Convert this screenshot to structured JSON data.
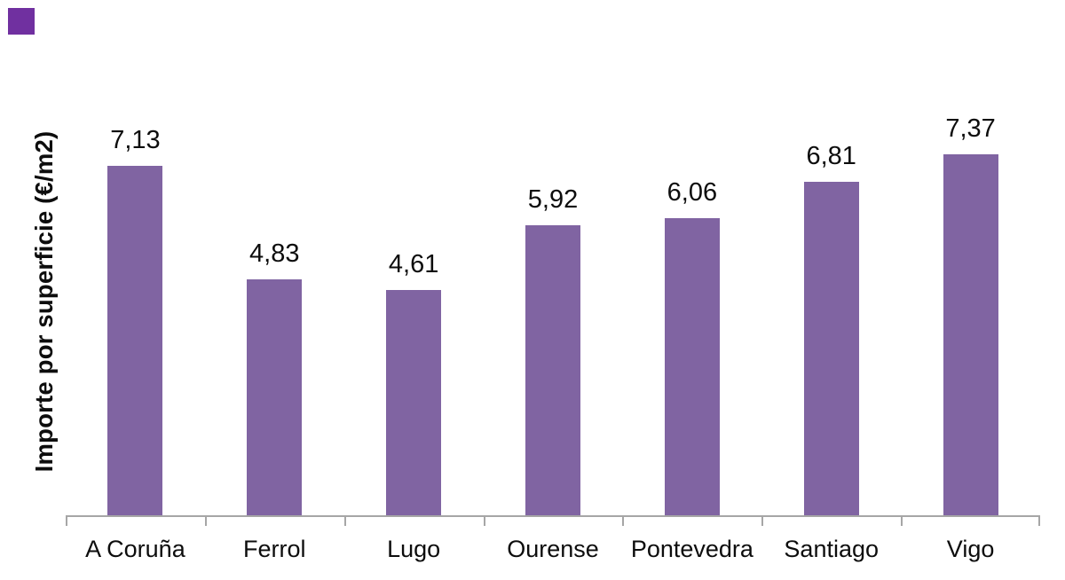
{
  "colors": {
    "bar": "#8064A2",
    "corner_square": "#7030A0",
    "axis": "#A6A6A6",
    "text": "#0d0d0d",
    "background": "#ffffff"
  },
  "corner_square": {
    "description": "decorative purple square, top-left corner"
  },
  "chart_data": {
    "type": "bar",
    "title": "",
    "categories": [
      "A Coruña",
      "Ferrol",
      "Lugo",
      "Ourense",
      "Pontevedra",
      "Santiago",
      "Vigo"
    ],
    "values": [
      7.13,
      4.83,
      4.61,
      5.92,
      6.06,
      6.81,
      7.37
    ],
    "value_labels": [
      "7,13",
      "4,83",
      "4,61",
      "5,92",
      "6,06",
      "6,81",
      "7,37"
    ],
    "xlabel": "",
    "ylabel": "Importe por superficie (€/m2)",
    "ylim": [
      0,
      8.7
    ],
    "y_axis_ticks_visible": false,
    "grid": false,
    "legend": "none",
    "bar_color": "#8064A2",
    "data_labels_position": "above-bars",
    "decimal_separator": "comma"
  }
}
